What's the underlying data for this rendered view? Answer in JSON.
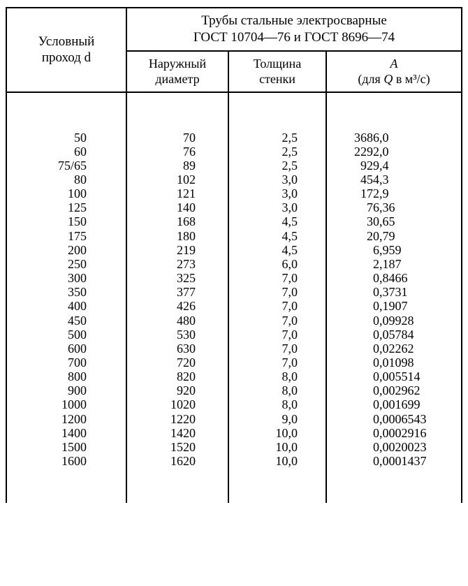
{
  "header": {
    "left_label": "Условный\nпроход d",
    "group_label": "Трубы стальные электросварные\nГОСТ 10704—76 и ГОСТ 8696—74",
    "sub1": "Наружный\nдиаметр",
    "sub2": "Толщина\nстенки",
    "sub3_html": "A<br>(для Q в м³/с)"
  },
  "table": {
    "type": "table",
    "columns": [
      "Условный проход d",
      "Наружный диаметр",
      "Толщина стенки",
      "A (для Q в м³/с)"
    ],
    "col_align": [
      "right",
      "right",
      "right",
      "decimal"
    ],
    "font_size_pt": 13,
    "border_color": "#000000",
    "background_color": "#ffffff",
    "rows": [
      [
        "50",
        "70",
        "2,5",
        "3686,0"
      ],
      [
        "60",
        "76",
        "2,5",
        "2292,0"
      ],
      [
        "75/65",
        "89",
        "2,5",
        "929,4"
      ],
      [
        "80",
        "102",
        "3,0",
        "454,3"
      ],
      [
        "100",
        "121",
        "3,0",
        "172,9"
      ],
      [
        "125",
        "140",
        "3,0",
        "76,36"
      ],
      [
        "150",
        "168",
        "4,5",
        "30,65"
      ],
      [
        "175",
        "180",
        "4,5",
        "20,79"
      ],
      [
        "200",
        "219",
        "4,5",
        "6,959"
      ],
      [
        "250",
        "273",
        "6,0",
        "2,187"
      ],
      [
        "300",
        "325",
        "7,0",
        "0,8466"
      ],
      [
        "350",
        "377",
        "7,0",
        "0,3731"
      ],
      [
        "400",
        "426",
        "7,0",
        "0,1907"
      ],
      [
        "450",
        "480",
        "7,0",
        "0,09928"
      ],
      [
        "500",
        "530",
        "7,0",
        "0,05784"
      ],
      [
        "600",
        "630",
        "7,0",
        "0,02262"
      ],
      [
        "700",
        "720",
        "7,0",
        "0,01098"
      ],
      [
        "800",
        "820",
        "8,0",
        "0,005514"
      ],
      [
        "900",
        "920",
        "8,0",
        "0,002962"
      ],
      [
        "1000",
        "1020",
        "8,0",
        "0,001699"
      ],
      [
        "1200",
        "1220",
        "9,0",
        "0,0006543"
      ],
      [
        "1400",
        "1420",
        "10,0",
        "0,0002916"
      ],
      [
        "1500",
        "1520",
        "10,0",
        "0,0020023"
      ],
      [
        "1600",
        "1620",
        "10,0",
        "0,0001437"
      ]
    ]
  },
  "col4_decimal_pad": 5
}
